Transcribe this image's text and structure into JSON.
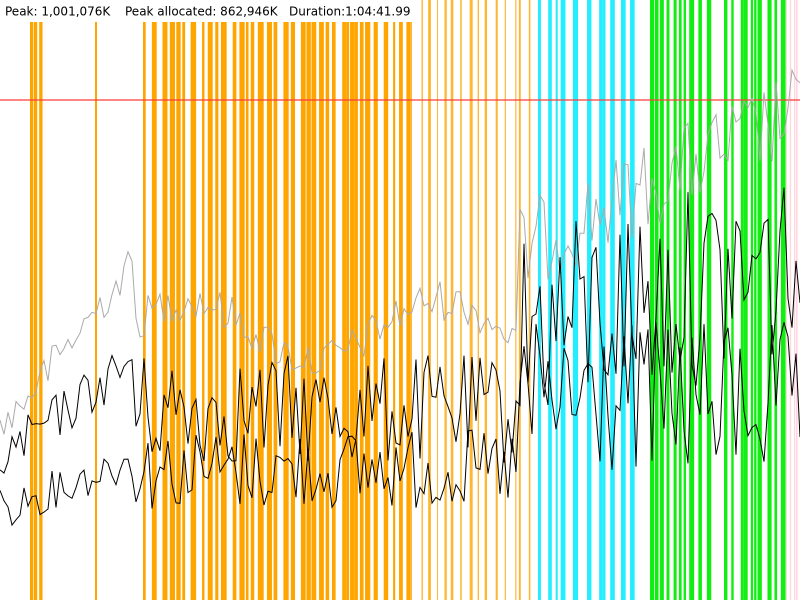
{
  "header": {
    "peak": "Peak: 1,001,076K",
    "peak_allocated": "Peak allocated: 862,946K",
    "duration": "Duration:1:04:41.99"
  }
}
